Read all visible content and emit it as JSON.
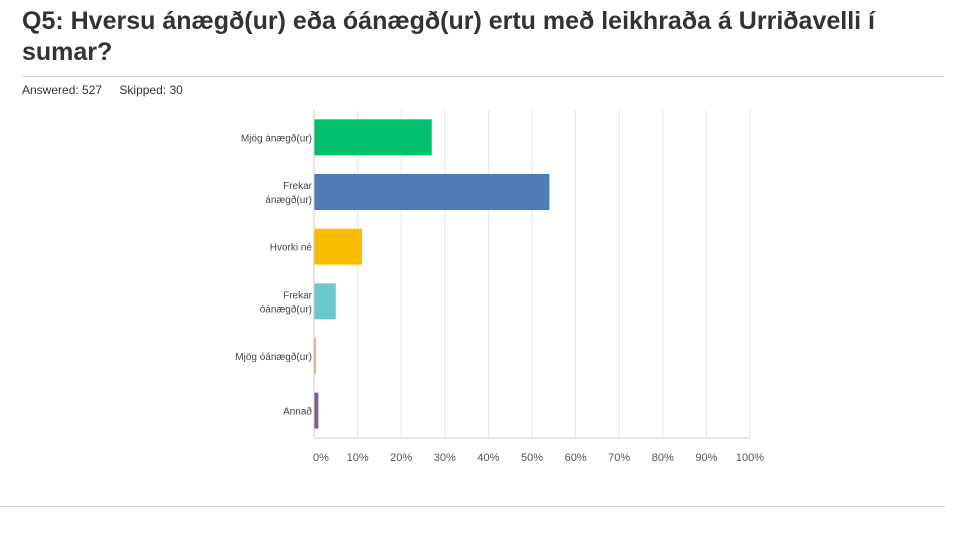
{
  "question": {
    "title": "Q5: Hversu ánægð(ur) eða óánægð(ur) ertu með leikhraða á Urriðavelli í sumar?",
    "answered_label": "Answered: 527",
    "skipped_label": "Skipped: 30"
  },
  "chart_data": {
    "type": "bar",
    "orientation": "horizontal",
    "title": "",
    "xlabel": "",
    "ylabel": "",
    "categories": [
      [
        "Mjög ánægð(ur)"
      ],
      [
        "Frekar",
        "ánægð(ur)"
      ],
      [
        "Hvorki né"
      ],
      [
        "Frekar",
        "óánægð(ur)"
      ],
      [
        "Mjög óánægð(ur)"
      ],
      [
        "Annað"
      ]
    ],
    "values": [
      27,
      54,
      11,
      5,
      0.4,
      1
    ],
    "colors": [
      "#00bf6f",
      "#507cb6",
      "#f9be00",
      "#6bc8cd",
      "#ff8b4f",
      "#7d5e90"
    ],
    "xlim": [
      0,
      100
    ],
    "x_ticks": [
      0,
      10,
      20,
      30,
      40,
      50,
      60,
      70,
      80,
      90,
      100
    ],
    "tick_format": "{v}%",
    "grid": true
  }
}
